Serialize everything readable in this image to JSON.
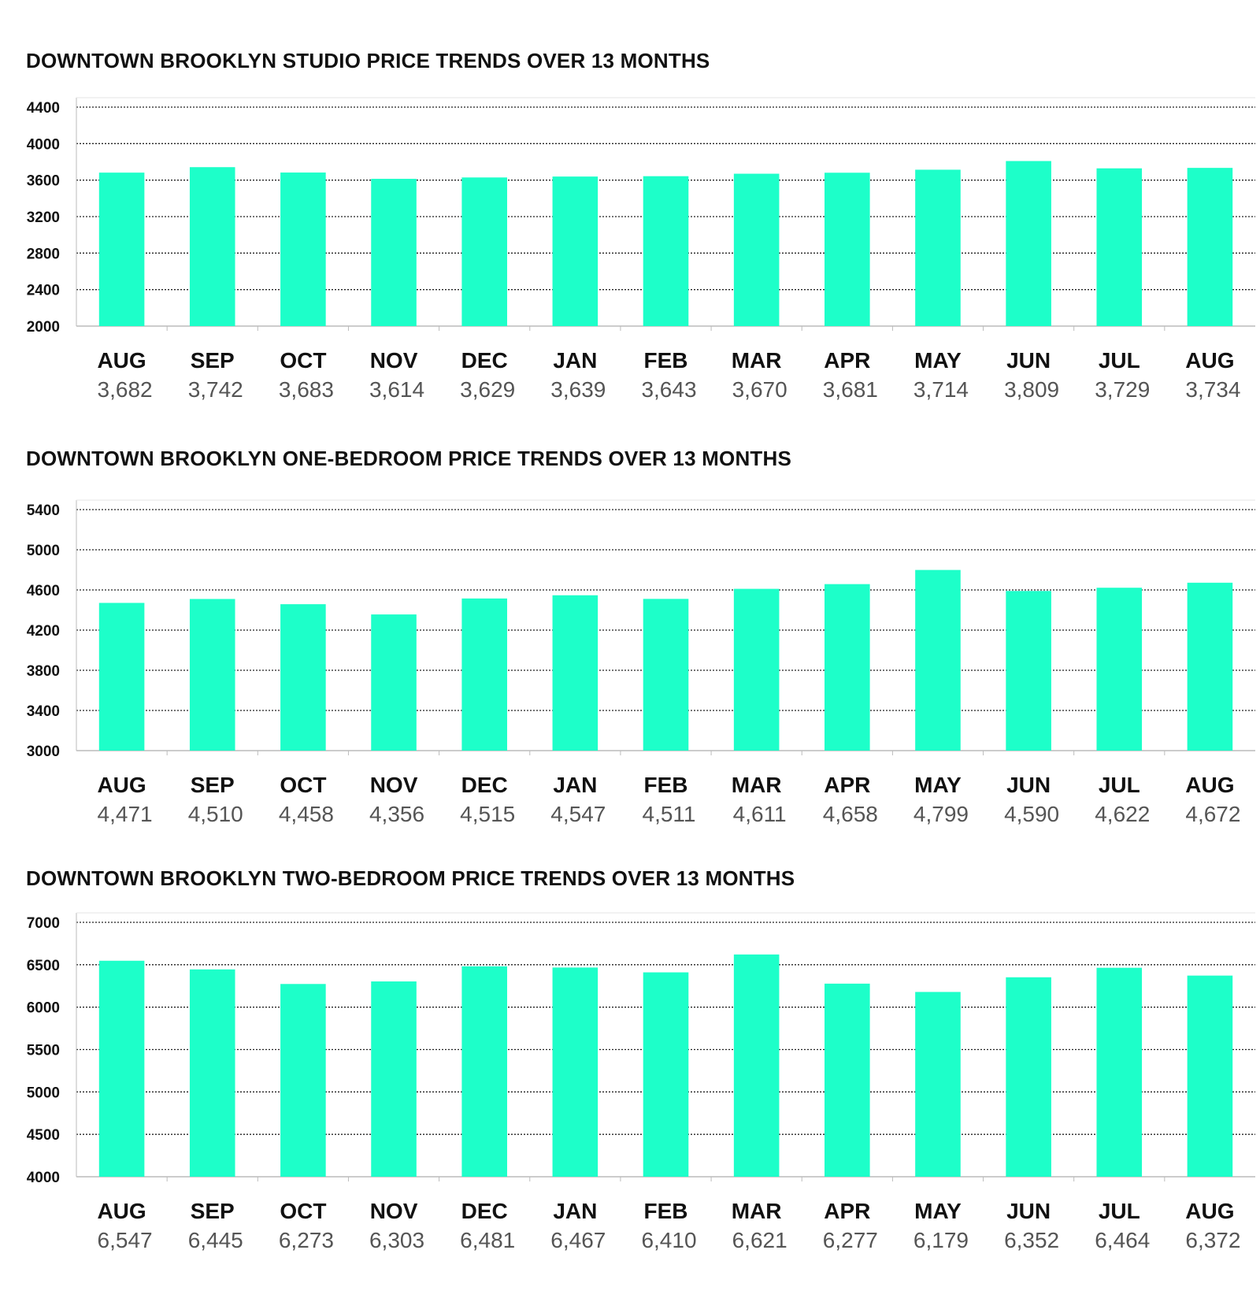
{
  "colors": {
    "bar": "#1dffc9",
    "grid": "#222222",
    "axis": "#bbbbbb",
    "title": "#111111",
    "value_text": "#555555"
  },
  "chart_data": [
    {
      "type": "bar",
      "title": "DOWNTOWN BROOKLYN STUDIO PRICE TRENDS OVER 13 MONTHS",
      "xlabel": "",
      "ylabel": "",
      "categories": [
        "AUG",
        "SEP",
        "OCT",
        "NOV",
        "DEC",
        "JAN",
        "FEB",
        "MAR",
        "APR",
        "MAY",
        "JUN",
        "JUL",
        "AUG"
      ],
      "values": [
        3682,
        3742,
        3683,
        3614,
        3629,
        3639,
        3643,
        3670,
        3681,
        3714,
        3809,
        3729,
        3734
      ],
      "value_labels": [
        "3,682",
        "3,742",
        "3,683",
        "3,614",
        "3,629",
        "3,639",
        "3,643",
        "3,670",
        "3,681",
        "3,714",
        "3,809",
        "3,729",
        "3,734"
      ],
      "ylim": [
        2000,
        4400
      ],
      "yticks": [
        2000,
        2400,
        2800,
        3200,
        3600,
        4000,
        4400
      ],
      "grid": true
    },
    {
      "type": "bar",
      "title": "DOWNTOWN BROOKLYN ONE-BEDROOM PRICE TRENDS OVER 13 MONTHS",
      "xlabel": "",
      "ylabel": "",
      "categories": [
        "AUG",
        "SEP",
        "OCT",
        "NOV",
        "DEC",
        "JAN",
        "FEB",
        "MAR",
        "APR",
        "MAY",
        "JUN",
        "JUL",
        "AUG"
      ],
      "values": [
        4471,
        4510,
        4458,
        4356,
        4515,
        4547,
        4511,
        4611,
        4658,
        4799,
        4590,
        4622,
        4672
      ],
      "value_labels": [
        "4,471",
        "4,510",
        "4,458",
        "4,356",
        "4,515",
        "4,547",
        "4,511",
        "4,611",
        "4,658",
        "4,799",
        "4,590",
        "4,622",
        "4,672"
      ],
      "ylim": [
        3000,
        5400
      ],
      "yticks": [
        3000,
        3400,
        3800,
        4200,
        4600,
        5000,
        5400
      ],
      "grid": true
    },
    {
      "type": "bar",
      "title": "DOWNTOWN BROOKLYN TWO-BEDROOM PRICE TRENDS OVER 13 MONTHS",
      "xlabel": "",
      "ylabel": "",
      "categories": [
        "AUG",
        "SEP",
        "OCT",
        "NOV",
        "DEC",
        "JAN",
        "FEB",
        "MAR",
        "APR",
        "MAY",
        "JUN",
        "JUL",
        "AUG"
      ],
      "values": [
        6547,
        6445,
        6273,
        6303,
        6481,
        6467,
        6410,
        6621,
        6277,
        6179,
        6352,
        6464,
        6372
      ],
      "value_labels": [
        "6,547",
        "6,445",
        "6,273",
        "6,303",
        "6,481",
        "6,467",
        "6,410",
        "6,621",
        "6,277",
        "6,179",
        "6,352",
        "6,464",
        "6,372"
      ],
      "ylim": [
        4000,
        7000
      ],
      "yticks": [
        4000,
        4500,
        5000,
        5500,
        6000,
        6500,
        7000
      ],
      "grid": true
    }
  ]
}
